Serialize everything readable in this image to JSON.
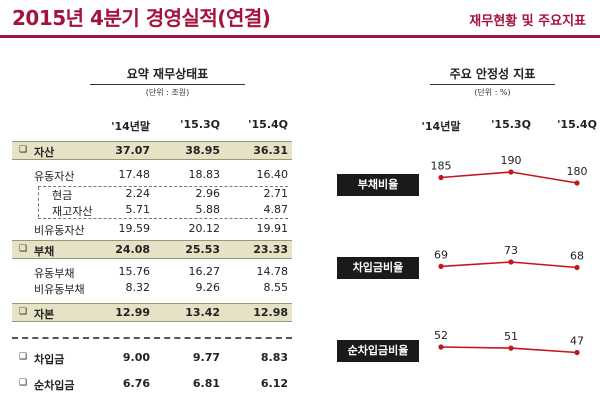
{
  "header": {
    "title": "2015년 4분기 경영실적(연결)",
    "section": "재무현황 및 주요지표"
  },
  "summary": {
    "title": "요약 재무상태표",
    "unit": "(단위 : 조원)",
    "columns": [
      "'14년말",
      "'15.3Q",
      "'15.4Q"
    ],
    "rows": [
      {
        "label": "자산",
        "values": [
          "37.07",
          "38.95",
          "36.31"
        ]
      },
      {
        "label": "유동자산",
        "values": [
          "17.48",
          "18.83",
          "16.40"
        ]
      },
      {
        "label": "현금",
        "values": [
          "2.24",
          "2.96",
          "2.71"
        ]
      },
      {
        "label": "재고자산",
        "values": [
          "5.71",
          "5.88",
          "4.87"
        ]
      },
      {
        "label": "비유동자산",
        "values": [
          "19.59",
          "20.12",
          "19.91"
        ]
      },
      {
        "label": "부채",
        "values": [
          "24.08",
          "25.53",
          "23.33"
        ]
      },
      {
        "label": "유동부채",
        "values": [
          "15.76",
          "16.27",
          "14.78"
        ]
      },
      {
        "label": "비유동부채",
        "values": [
          "8.32",
          "9.26",
          "8.55"
        ]
      },
      {
        "label": "자본",
        "values": [
          "12.99",
          "13.42",
          "12.98"
        ]
      },
      {
        "label": "차입금",
        "values": [
          "9.00",
          "9.77",
          "8.83"
        ]
      },
      {
        "label": "순차입금",
        "values": [
          "6.76",
          "6.81",
          "6.12"
        ]
      }
    ]
  },
  "indicators": {
    "title": "주요 안정성 지표",
    "unit": "(단위 : %)",
    "columns": [
      "'14년말",
      "'15.3Q",
      "'15.4Q"
    ],
    "line_color": "#c4161c",
    "items": [
      {
        "label": "부채비율",
        "values": [
          185,
          190,
          180
        ]
      },
      {
        "label": "차입금비율",
        "values": [
          69,
          73,
          68
        ]
      },
      {
        "label": "순차입금비율",
        "values": [
          52,
          51,
          47
        ]
      }
    ]
  }
}
